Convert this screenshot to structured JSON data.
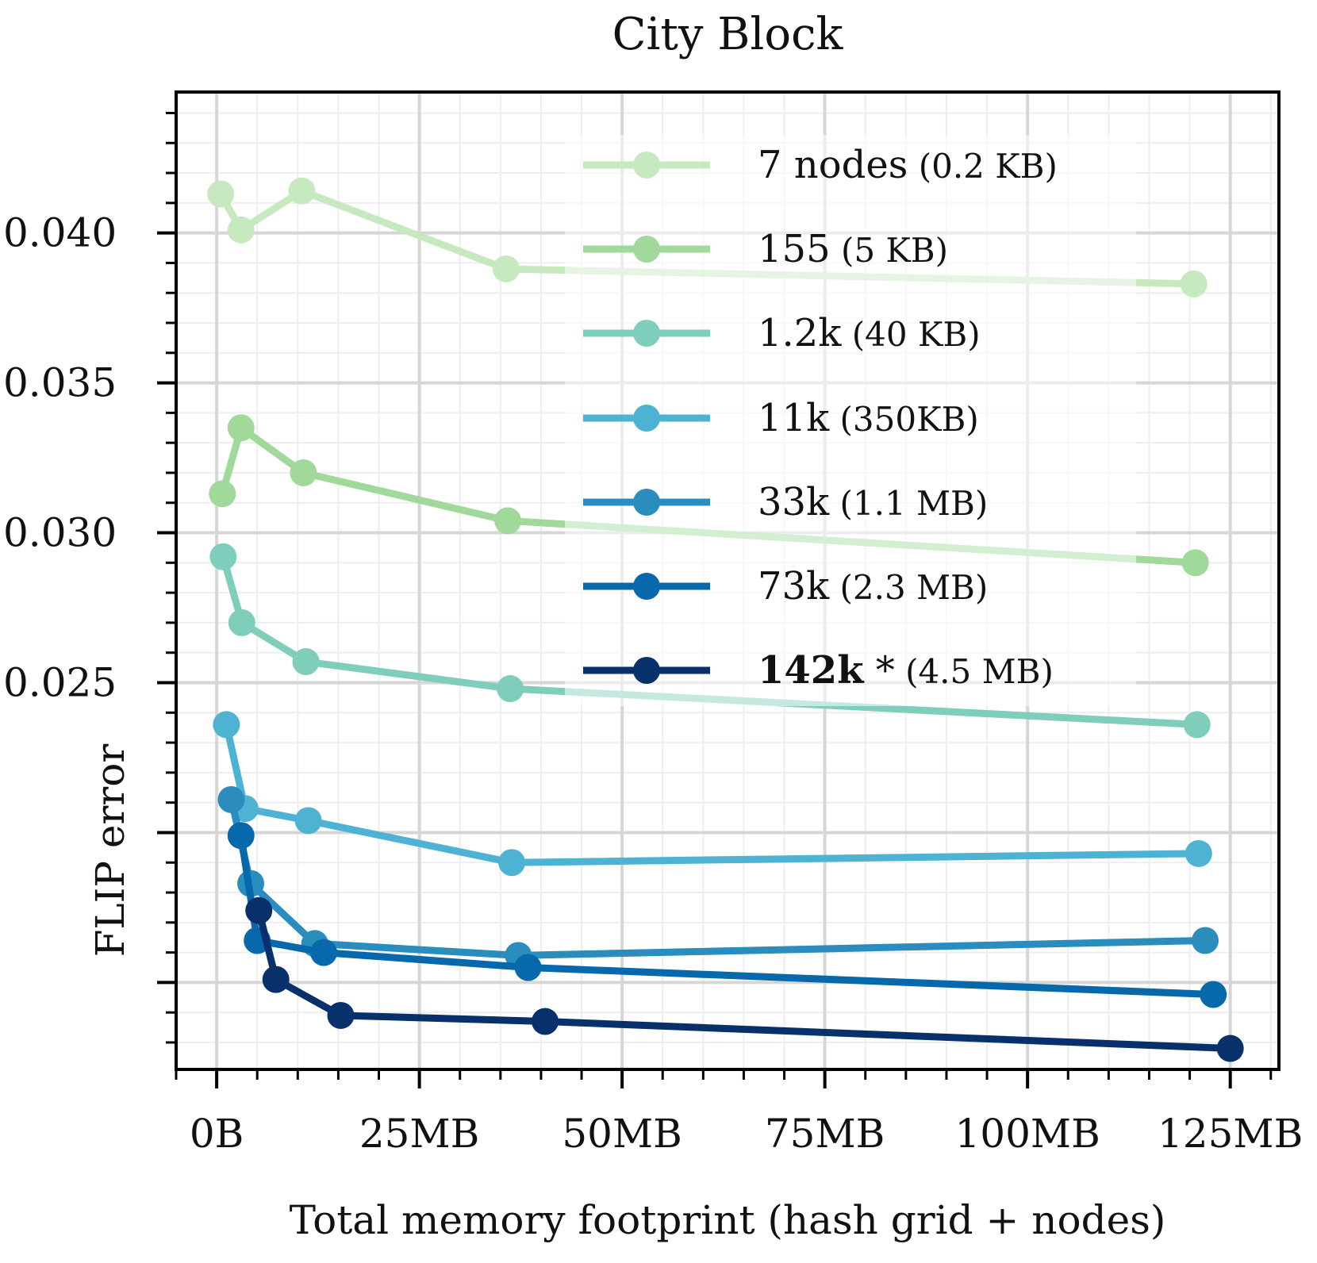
{
  "chart_data": {
    "type": "line",
    "title": "City Block",
    "xlabel": "Total memory footprint (hash grid + nodes)",
    "ylabel": "FLIP error",
    "xlim": [
      -5,
      131
    ],
    "ylim": [
      0.0121,
      0.0447
    ],
    "x_ticks": [
      {
        "value": 0,
        "label": "0B"
      },
      {
        "value": 25,
        "label": "25MB"
      },
      {
        "value": 50,
        "label": "50MB"
      },
      {
        "value": 75,
        "label": "75MB"
      },
      {
        "value": 100,
        "label": "100MB"
      },
      {
        "value": 125,
        "label": "125MB"
      }
    ],
    "y_ticks": [
      {
        "value": 0.025,
        "label": "0.025"
      },
      {
        "value": 0.03,
        "label": "0.030"
      },
      {
        "value": 0.035,
        "label": "0.035"
      },
      {
        "value": 0.04,
        "label": "0.040"
      }
    ],
    "y_gridlines": [
      0.015,
      0.02,
      0.025,
      0.03,
      0.035,
      0.04
    ],
    "grid": true,
    "legend_position": "top-right",
    "series": [
      {
        "name": "7 nodes",
        "size": "(0.2 KB)",
        "bold": false,
        "color": "#c7e9c0",
        "x": [
          0.5,
          3.0,
          10.5,
          35.7,
          120.5
        ],
        "y": [
          0.0413,
          0.0401,
          0.0414,
          0.0388,
          0.0383
        ]
      },
      {
        "name": "155",
        "size": "(5 KB)",
        "bold": false,
        "color": "#a1d99b",
        "x": [
          0.7,
          3.0,
          10.7,
          35.9,
          120.7
        ],
        "y": [
          0.0313,
          0.0335,
          0.032,
          0.0304,
          0.029
        ]
      },
      {
        "name": "1.2k",
        "size": "(40 KB)",
        "bold": false,
        "color": "#7fcdbb",
        "x": [
          0.8,
          3.1,
          11.0,
          36.2,
          120.9
        ],
        "y": [
          0.0292,
          0.027,
          0.0257,
          0.0248,
          0.0236
        ]
      },
      {
        "name": "11k",
        "size": "(350KB)",
        "bold": false,
        "color": "#4eb3d3",
        "x": [
          1.2,
          3.5,
          11.3,
          36.4,
          121.1
        ],
        "y": [
          0.0236,
          0.0208,
          0.0204,
          0.019,
          0.0193
        ]
      },
      {
        "name": "33k",
        "size": "(1.1 MB)",
        "bold": false,
        "color": "#2b8cbe",
        "x": [
          1.8,
          4.2,
          12.1,
          37.2,
          121.9
        ],
        "y": [
          0.0211,
          0.0183,
          0.0163,
          0.0159,
          0.0164
        ]
      },
      {
        "name": "73k",
        "size": "(2.3 MB)",
        "bold": false,
        "color": "#0868ac",
        "x": [
          3.0,
          5.0,
          13.2,
          38.4,
          122.9
        ],
        "y": [
          0.0199,
          0.0164,
          0.016,
          0.0155,
          0.0146
        ]
      },
      {
        "name": "142k",
        "size": "(4.5 MB)",
        "bold": true,
        "star": "*",
        "color": "#08306b",
        "x": [
          5.2,
          7.3,
          15.3,
          40.5,
          125.0
        ],
        "y": [
          0.0174,
          0.0151,
          0.0139,
          0.0137,
          0.0128
        ]
      }
    ]
  }
}
